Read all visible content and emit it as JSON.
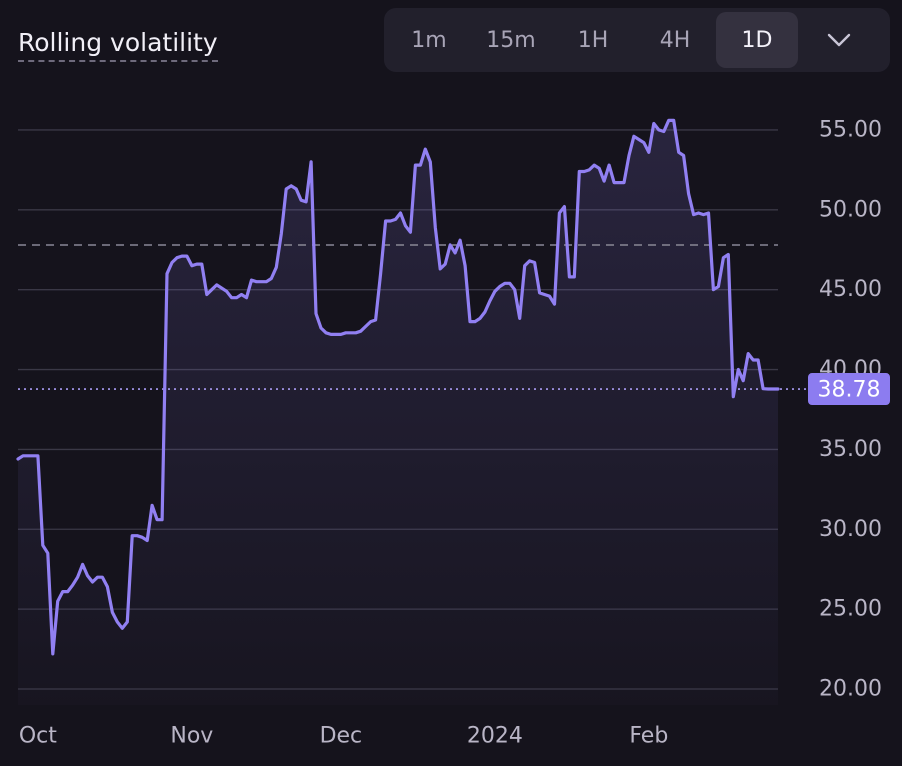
{
  "header": {
    "title": "Rolling volatility",
    "timeframes": [
      {
        "label": "1m",
        "active": false
      },
      {
        "label": "15m",
        "active": false
      },
      {
        "label": "1H",
        "active": false
      },
      {
        "label": "4H",
        "active": false
      },
      {
        "label": "1D",
        "active": true
      }
    ],
    "more_icon": "chevron-down-icon"
  },
  "colors": {
    "background": "#15131c",
    "line": "#9180f2",
    "grid": "#3a3846",
    "reference_line": "#8a8796",
    "last_value_badge": "#8c7cf0"
  },
  "chart_data": {
    "type": "line",
    "title": "",
    "xlabel": "",
    "ylabel": "",
    "ylim": [
      19,
      57.5
    ],
    "y_ticks": [
      "20.00",
      "25.00",
      "30.00",
      "35.00",
      "40.00",
      "45.00",
      "50.00",
      "55.00"
    ],
    "x_ticks": [
      {
        "label": "Oct",
        "x": 4
      },
      {
        "label": "Nov",
        "x": 35
      },
      {
        "label": "Dec",
        "x": 65
      },
      {
        "label": "2024",
        "x": 96
      },
      {
        "label": "Feb",
        "x": 127
      }
    ],
    "grid": true,
    "reference_line": 47.8,
    "last_value": 38.78,
    "last_value_label": "38.78",
    "series": [
      {
        "x": [
          0,
          1,
          2,
          3,
          4,
          5,
          6,
          7,
          8,
          9,
          10,
          11,
          12,
          13,
          14,
          15,
          16,
          17,
          18,
          19,
          20,
          21,
          22,
          23,
          24,
          25,
          26,
          27,
          28,
          29,
          30,
          31,
          32,
          33,
          34,
          35,
          36,
          37,
          38,
          39,
          40,
          41,
          42,
          43,
          44,
          45,
          46,
          47,
          48,
          49,
          50,
          51,
          52,
          53,
          54,
          55,
          56,
          57,
          58,
          59,
          60,
          61,
          62,
          63,
          64,
          65,
          66,
          67,
          68,
          69,
          70,
          71,
          72,
          73,
          74,
          75,
          76,
          77,
          78,
          79,
          80,
          81,
          82,
          83,
          84,
          85,
          86,
          87,
          88,
          89,
          90,
          91,
          92,
          93,
          94,
          95,
          96,
          97,
          98,
          99,
          100,
          101,
          102,
          103,
          104,
          105,
          106,
          107,
          108,
          109,
          110,
          111,
          112,
          113,
          114,
          115,
          116,
          117,
          118,
          119,
          120,
          121,
          122,
          123,
          124,
          125,
          126,
          127,
          128,
          129,
          130,
          131,
          132,
          133,
          134,
          135,
          136,
          137,
          138,
          139,
          140,
          141,
          142,
          143,
          144,
          145,
          146,
          147,
          148,
          149,
          150,
          151,
          152,
          153
        ],
        "y": [
          34.4,
          34.6,
          34.6,
          34.6,
          34.6,
          29.0,
          28.5,
          22.2,
          25.5,
          26.1,
          26.1,
          26.5,
          27.0,
          27.8,
          27.1,
          26.7,
          27.0,
          27.0,
          26.4,
          24.8,
          24.2,
          23.8,
          24.2,
          29.6,
          29.6,
          29.5,
          29.3,
          31.5,
          30.6,
          30.6,
          46.0,
          46.7,
          47.0,
          47.1,
          47.1,
          46.5,
          46.6,
          46.6,
          44.7,
          45.0,
          45.3,
          45.1,
          44.9,
          44.5,
          44.5,
          44.7,
          44.5,
          45.6,
          45.5,
          45.5,
          45.5,
          45.7,
          46.4,
          48.5,
          51.3,
          51.5,
          51.3,
          50.6,
          50.5,
          53.0,
          43.5,
          42.6,
          42.3,
          42.2,
          42.2,
          42.2,
          42.3,
          42.3,
          42.3,
          42.4,
          42.7,
          43.0,
          43.1,
          46.0,
          49.3,
          49.3,
          49.4,
          49.8,
          49.0,
          48.6,
          52.8,
          52.8,
          53.8,
          53.0,
          48.9,
          46.3,
          46.6,
          47.8,
          47.3,
          48.1,
          46.5,
          43.0,
          43.0,
          43.2,
          43.6,
          44.3,
          44.9,
          45.2,
          45.4,
          45.4,
          45.0,
          43.2,
          46.5,
          46.8,
          46.7,
          44.8,
          44.7,
          44.6,
          44.1,
          49.8,
          50.2,
          45.8,
          45.8,
          52.4,
          52.4,
          52.5,
          52.8,
          52.6,
          51.8,
          52.8,
          51.7,
          51.7,
          51.7,
          53.4,
          54.6,
          54.4,
          54.2,
          53.6,
          55.4,
          55.0,
          54.9,
          55.6,
          55.6,
          53.6,
          53.4,
          51.0,
          49.7,
          49.8,
          49.7,
          49.8,
          45.0,
          45.2,
          47.0,
          47.2,
          38.3,
          40.0,
          39.3,
          41.0,
          40.6,
          40.6,
          38.8,
          38.78,
          38.78,
          38.78
        ]
      }
    ]
  }
}
